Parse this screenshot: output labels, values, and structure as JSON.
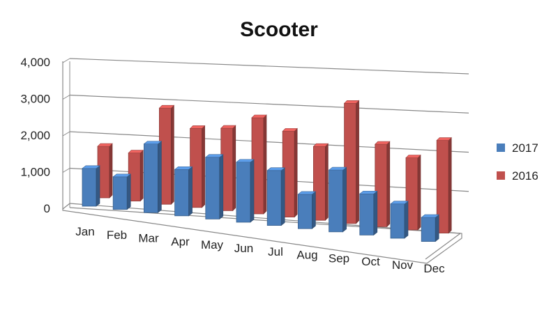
{
  "chart_data": {
    "type": "bar",
    "title": "Scooter",
    "xlabel": "",
    "ylabel": "",
    "categories": [
      "Jan",
      "Feb",
      "Mar",
      "Apr",
      "May",
      "Jun",
      "Jul",
      "Aug",
      "Sep",
      "Oct",
      "Nov",
      "Dec"
    ],
    "series": [
      {
        "name": "2017",
        "color": "#4a7ebb",
        "values": [
          1100,
          950,
          2000,
          1350,
          1800,
          1750,
          1600,
          1000,
          1800,
          1200,
          1000,
          700
        ]
      },
      {
        "name": "2016",
        "color": "#c0504d",
        "values": [
          1500,
          1400,
          2800,
          2300,
          2400,
          2800,
          2500,
          2150,
          3500,
          2400,
          2100,
          2700
        ]
      }
    ],
    "yticks": [
      "0",
      "1,000",
      "2,000",
      "3,000",
      "4,000"
    ],
    "ylim": [
      0,
      4000
    ],
    "grid": true,
    "legend_position": "right",
    "style": "3d-clustered-column"
  }
}
